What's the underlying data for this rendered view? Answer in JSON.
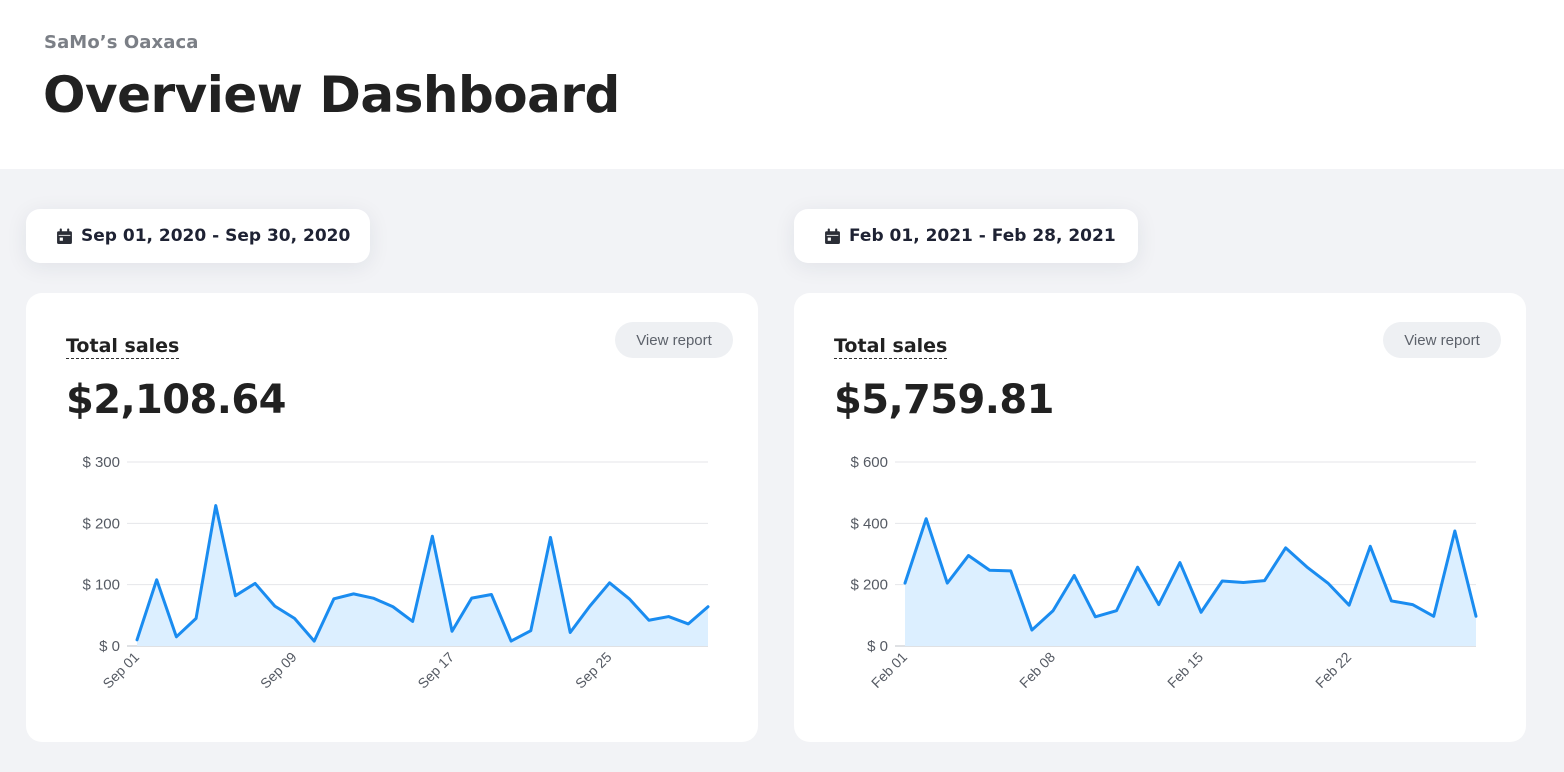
{
  "header": {
    "store_name": "SaMo’s Oaxaca",
    "title": "Overview Dashboard"
  },
  "panels": [
    {
      "date_range": "Sep 01, 2020 - Sep 30, 2020",
      "card_title": "Total sales",
      "view_report_label": "View report",
      "total": "$2,108.64"
    },
    {
      "date_range": "Feb 01, 2021 - Feb 28, 2021",
      "card_title": "Total sales",
      "view_report_label": "View report",
      "total": "$5,759.81"
    }
  ],
  "colors": {
    "line": "#1a8cf0",
    "area": "#dcefff",
    "grid": "#e4e6ea",
    "axis_text": "#555a63"
  },
  "icons": {
    "date": "calendar-icon"
  },
  "chart_data": [
    {
      "type": "area",
      "title": "Total sales",
      "x": [
        "Sep 01",
        "Sep 02",
        "Sep 03",
        "Sep 04",
        "Sep 05",
        "Sep 06",
        "Sep 07",
        "Sep 08",
        "Sep 09",
        "Sep 10",
        "Sep 11",
        "Sep 12",
        "Sep 13",
        "Sep 14",
        "Sep 15",
        "Sep 16",
        "Sep 17",
        "Sep 18",
        "Sep 19",
        "Sep 20",
        "Sep 21",
        "Sep 22",
        "Sep 23",
        "Sep 24",
        "Sep 25",
        "Sep 26",
        "Sep 27",
        "Sep 28",
        "Sep 29",
        "Sep 30"
      ],
      "values": [
        10,
        108,
        15,
        45,
        229,
        82,
        102,
        65,
        45,
        8,
        77,
        85,
        78,
        64,
        40,
        179,
        24,
        78,
        84,
        8,
        25,
        177,
        22,
        65,
        103,
        77,
        42,
        48,
        36,
        64
      ],
      "tick_labels": [
        "Sep 01",
        "Sep 09",
        "Sep 17",
        "Sep 25"
      ],
      "y_ticks": [
        "$ 0",
        "$ 100",
        "$ 200",
        "$ 300"
      ],
      "ylim": [
        0,
        300
      ],
      "grid": true,
      "legend": "none"
    },
    {
      "type": "area",
      "title": "Total sales",
      "x": [
        "Feb 01",
        "Feb 02",
        "Feb 03",
        "Feb 04",
        "Feb 05",
        "Feb 06",
        "Feb 07",
        "Feb 08",
        "Feb 09",
        "Feb 10",
        "Feb 11",
        "Feb 12",
        "Feb 13",
        "Feb 14",
        "Feb 15",
        "Feb 16",
        "Feb 17",
        "Feb 18",
        "Feb 19",
        "Feb 20",
        "Feb 21",
        "Feb 22",
        "Feb 23",
        "Feb 24",
        "Feb 25",
        "Feb 26",
        "Feb 27",
        "Feb 28"
      ],
      "values": [
        205,
        415,
        205,
        295,
        247,
        245,
        52,
        115,
        230,
        95,
        115,
        257,
        135,
        272,
        110,
        212,
        207,
        213,
        320,
        258,
        205,
        133,
        325,
        147,
        135,
        97,
        375,
        97
      ],
      "tick_labels": [
        "Feb 01",
        "Feb 08",
        "Feb 15",
        "Feb 22"
      ],
      "y_ticks": [
        "$ 0",
        "$ 200",
        "$ 400",
        "$ 600"
      ],
      "ylim": [
        0,
        600
      ],
      "grid": true,
      "legend": "none"
    }
  ]
}
